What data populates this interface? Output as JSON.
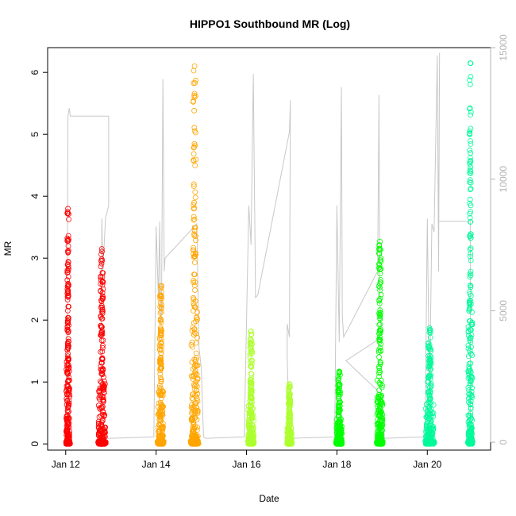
{
  "chart_data": {
    "type": "scatter",
    "title": "HIPPO1 Southbound MR (Log)",
    "xlabel": "Date",
    "ylabel": "MR",
    "x_range_days": [
      11.6,
      21.4
    ],
    "xticks": [
      {
        "day": 12,
        "label": "Jan 12"
      },
      {
        "day": 14,
        "label": "Jan 14"
      },
      {
        "day": 16,
        "label": "Jan 16"
      },
      {
        "day": 18,
        "label": "Jan 18"
      },
      {
        "day": 20,
        "label": "Jan 20"
      }
    ],
    "ylim": [
      -0.1,
      6.4
    ],
    "yticks": [
      0,
      1,
      2,
      3,
      4,
      5,
      6
    ],
    "y2_label": "",
    "y2lim": [
      -300,
      15000
    ],
    "y2ticks": [
      0,
      5000,
      10000,
      15000
    ],
    "y2_color": "#b3b3b3",
    "marker": "open-circle",
    "series": [
      {
        "color": "#ff0000",
        "clusters": [
          {
            "day": 12.05,
            "max": 3.8,
            "spread": 0.08
          },
          {
            "day": 12.8,
            "max": 3.15,
            "spread": 0.15
          }
        ]
      },
      {
        "color": "#ffa500",
        "clusters": [
          {
            "day": 14.1,
            "max": 2.55,
            "spread": 0.12
          },
          {
            "day": 14.85,
            "max": 6.1,
            "spread": 0.15
          }
        ]
      },
      {
        "color": "#adff2f",
        "clusters": [
          {
            "day": 16.1,
            "max": 1.82,
            "spread": 0.12
          },
          {
            "day": 16.95,
            "max": 0.97,
            "spread": 0.1
          }
        ]
      },
      {
        "color": "#00ff00",
        "clusters": [
          {
            "day": 18.05,
            "max": 1.17,
            "spread": 0.12
          },
          {
            "day": 18.95,
            "max": 3.27,
            "spread": 0.12
          }
        ]
      },
      {
        "color": "#00fa9a",
        "clusters": [
          {
            "day": 20.05,
            "max": 1.87,
            "spread": 0.18
          },
          {
            "day": 20.95,
            "max": 6.15,
            "spread": 0.09
          }
        ]
      }
    ],
    "secondary_line": {
      "color": "#c8c8c8",
      "points": [
        [
          12.02,
          200
        ],
        [
          12.05,
          12400
        ],
        [
          12.08,
          12700
        ],
        [
          12.1,
          12400
        ],
        [
          12.15,
          12400
        ],
        [
          12.95,
          12400
        ],
        [
          12.95,
          9000
        ],
        [
          12.88,
          8500
        ],
        [
          12.82,
          6500
        ],
        [
          12.8,
          8500
        ],
        [
          12.78,
          2500
        ],
        [
          12.85,
          200
        ],
        [
          12.9,
          150
        ],
        [
          13.0,
          150
        ],
        [
          13.95,
          200
        ],
        [
          14.0,
          8200
        ],
        [
          14.05,
          5500
        ],
        [
          14.08,
          8400
        ],
        [
          14.1,
          4500
        ],
        [
          14.12,
          5000
        ],
        [
          14.15,
          13800
        ],
        [
          14.18,
          6500
        ],
        [
          14.2,
          7000
        ],
        [
          14.9,
          8300
        ],
        [
          14.95,
          3600
        ],
        [
          15.0,
          2800
        ],
        [
          15.05,
          200
        ],
        [
          15.1,
          150
        ],
        [
          15.95,
          200
        ],
        [
          16.05,
          9000
        ],
        [
          16.1,
          7500
        ],
        [
          16.15,
          14000
        ],
        [
          16.2,
          5500
        ],
        [
          16.25,
          5600
        ],
        [
          16.95,
          11800
        ],
        [
          16.97,
          13000
        ],
        [
          16.95,
          4000
        ],
        [
          16.9,
          4500
        ],
        [
          16.9,
          3200
        ],
        [
          16.95,
          200
        ],
        [
          17.0,
          150
        ],
        [
          17.95,
          200
        ],
        [
          18.0,
          9000
        ],
        [
          18.05,
          3800
        ],
        [
          18.1,
          13500
        ],
        [
          18.12,
          4800
        ],
        [
          18.15,
          4000
        ],
        [
          18.9,
          6500
        ],
        [
          18.93,
          13200
        ],
        [
          18.95,
          5500
        ],
        [
          18.97,
          4200
        ],
        [
          19.0,
          4000
        ],
        [
          18.2,
          3100
        ],
        [
          19.0,
          1800
        ],
        [
          19.05,
          150
        ],
        [
          19.95,
          200
        ],
        [
          20.0,
          8500
        ],
        [
          20.05,
          1700
        ],
        [
          20.1,
          8300
        ],
        [
          20.15,
          8000
        ],
        [
          20.2,
          12800
        ],
        [
          20.22,
          14700
        ],
        [
          20.25,
          6500
        ],
        [
          20.27,
          14800
        ],
        [
          20.25,
          8400
        ],
        [
          20.95,
          8400
        ],
        [
          20.95,
          400
        ],
        [
          21.0,
          300
        ]
      ]
    }
  }
}
